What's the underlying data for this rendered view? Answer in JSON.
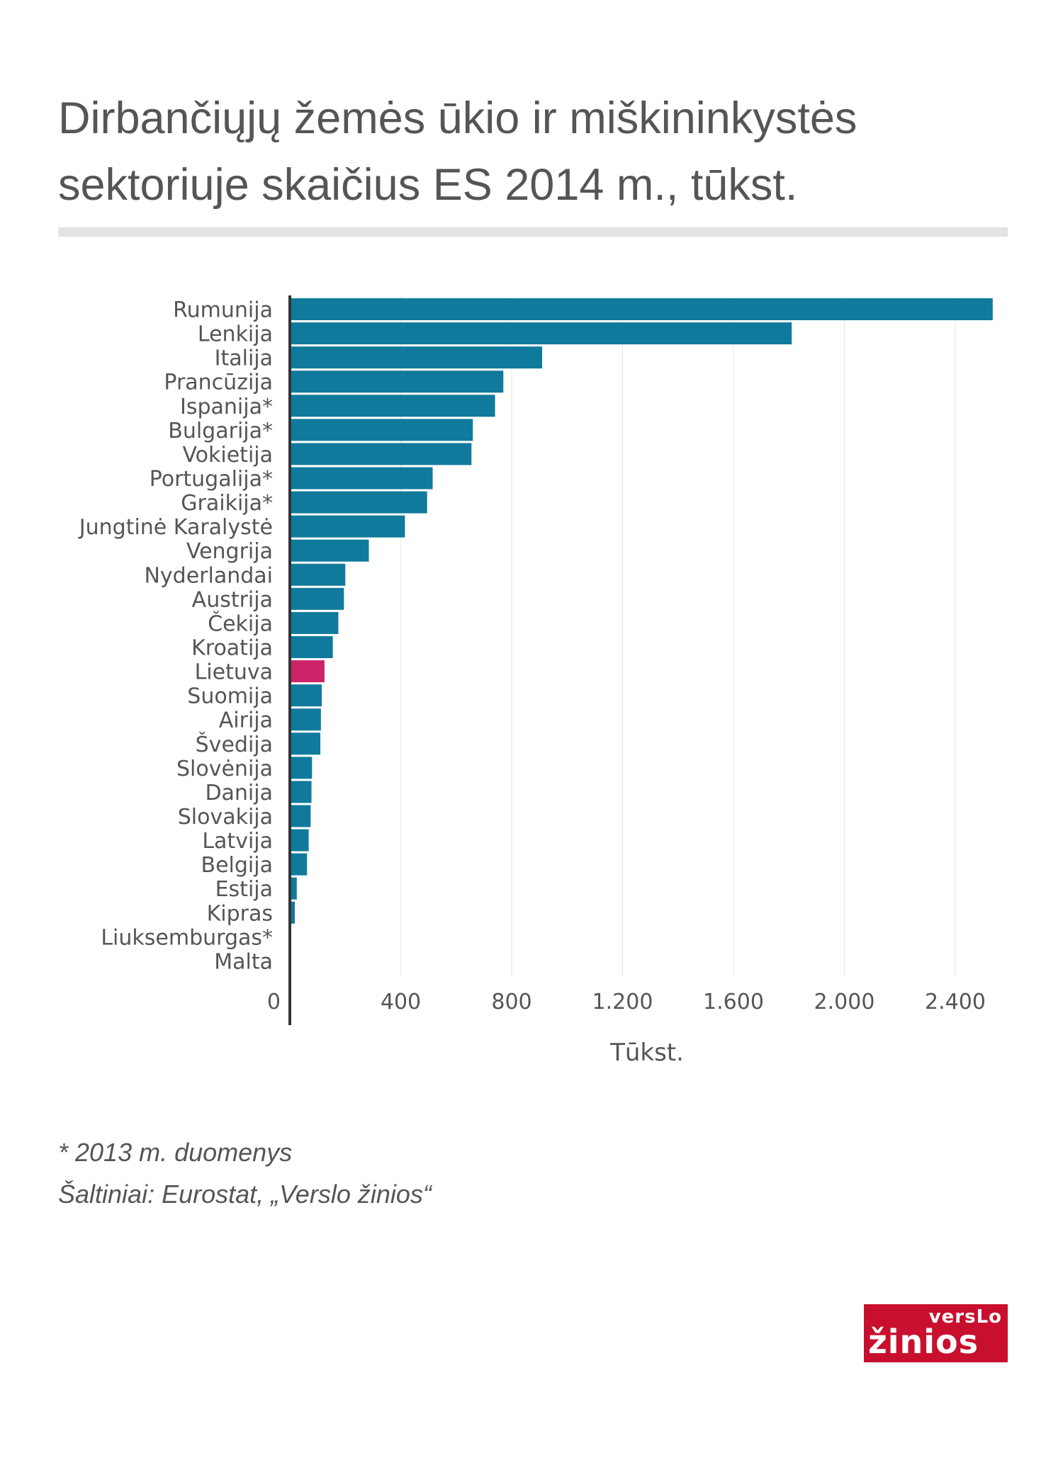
{
  "header": {
    "title_line1": "Dirbančiųjų žemės ūkio ir miškininkystės",
    "title_line2": "sektoriuje skaičius ES 2014 m., tūkst."
  },
  "footnotes": {
    "note": "* 2013 m. duomenys",
    "source": "Šaltiniai: Eurostat, „Verslo žinios“"
  },
  "logo": {
    "top_text": "versLo",
    "bottom_text": "žinios",
    "color": "#c8102e"
  },
  "colors": {
    "bar": "#0f7a9c",
    "highlight": "#cc2268",
    "axis": "#333333",
    "grid": "#e6e6e6"
  },
  "chart_data": {
    "type": "bar",
    "orientation": "horizontal",
    "title": "Dirbančiųjų žemės ūkio ir miškininkystės sektoriuje skaičius ES 2014 m., tūkst.",
    "xlabel": "Tūkst.",
    "ylabel": "",
    "xlim": [
      0,
      2600
    ],
    "xticks": [
      0,
      400,
      800,
      1200,
      1600,
      2000,
      2400
    ],
    "xtick_labels": [
      "0",
      "400",
      "800",
      "1.200",
      "1.600",
      "2.000",
      "2.400"
    ],
    "grid": true,
    "highlight": "Lietuva",
    "categories": [
      "Rumunija",
      "Lenkija",
      "Italija",
      "Prancūzija",
      "Ispanija*",
      "Bulgarija*",
      "Vokietija",
      "Portugalija*",
      "Graikija*",
      "Jungtinė Karalystė",
      "Vengrija",
      "Nyderlandai",
      "Austrija",
      "Čekija",
      "Kroatija",
      "Lietuva",
      "Suomija",
      "Airija",
      "Švedija",
      "Slovėnija",
      "Danija",
      "Slovakija",
      "Latvija",
      "Belgija",
      "Estija",
      "Kipras",
      "Liuksemburgas*",
      "Malta"
    ],
    "values": [
      2535,
      1810,
      910,
      770,
      740,
      660,
      655,
      515,
      495,
      415,
      285,
      200,
      195,
      175,
      155,
      125,
      115,
      112,
      110,
      80,
      78,
      75,
      68,
      62,
      25,
      18,
      4,
      3
    ]
  }
}
